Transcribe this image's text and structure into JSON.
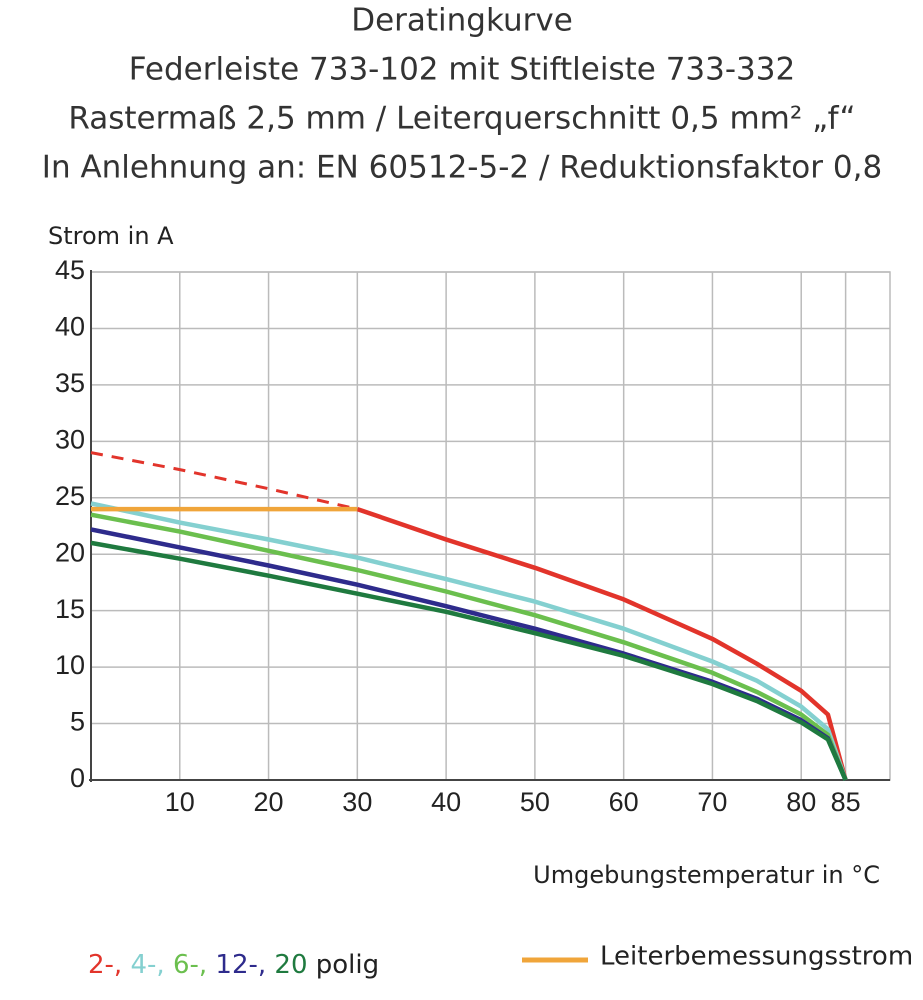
{
  "chart_data": {
    "type": "line",
    "title": [
      "Deratingkurve",
      "Federleiste 733-102 mit Stiftleiste 733-332",
      "Rastermaß 2,5 mm / Leiterquerschnitt 0,5 mm² „f“",
      "In Anlehnung an: EN 60512-5-2 / Reduktionsfaktor 0,8"
    ],
    "y_label": "Strom in A",
    "x_label": "Umgebungstemperatur in °C",
    "x": [
      0,
      10,
      20,
      30,
      40,
      50,
      60,
      70,
      75,
      80,
      83,
      85
    ],
    "xlim": [
      0,
      90
    ],
    "xticks": [
      10,
      20,
      30,
      40,
      50,
      60,
      70,
      80,
      85
    ],
    "ylim": [
      0,
      45
    ],
    "yticks": [
      0,
      5,
      10,
      15,
      20,
      25,
      30,
      35,
      40,
      45
    ],
    "grid": true,
    "legend_suffix": "polig",
    "series": [
      {
        "name": "2-,",
        "color": "#e2342b",
        "legend": "left",
        "values": [
          null,
          null,
          null,
          24,
          21.3,
          18.8,
          16,
          12.5,
          10.3,
          7.9,
          5.8,
          0
        ],
        "dashed_values": [
          29,
          27.5,
          25.8,
          24,
          null,
          null,
          null,
          null,
          null,
          null,
          null,
          null
        ]
      },
      {
        "name": "4-,",
        "color": "#84d0d0",
        "legend": "left",
        "values": [
          24.5,
          22.8,
          21.3,
          19.7,
          17.8,
          15.8,
          13.4,
          10.5,
          8.8,
          6.5,
          4.5,
          0
        ]
      },
      {
        "name": "6-,",
        "color": "#6bbf4e",
        "legend": "left",
        "values": [
          23.5,
          22,
          20.3,
          18.6,
          16.7,
          14.6,
          12.2,
          9.5,
          7.8,
          5.8,
          4,
          0
        ]
      },
      {
        "name": "12-,",
        "color": "#2e2b8c",
        "legend": "left",
        "values": [
          22.2,
          20.6,
          19,
          17.3,
          15.4,
          13.4,
          11.2,
          8.7,
          7.2,
          5.3,
          3.7,
          0
        ]
      },
      {
        "name": "20",
        "color": "#1f7a3f",
        "legend": "left",
        "values": [
          21,
          19.6,
          18.1,
          16.5,
          14.9,
          13,
          11,
          8.5,
          7,
          5.1,
          3.6,
          0
        ]
      },
      {
        "name": "Leiterbemessungsstrom",
        "color": "#f0a53a",
        "legend": "right",
        "values": [
          24,
          24,
          24,
          24,
          null,
          null,
          null,
          null,
          null,
          null,
          null,
          null
        ]
      }
    ]
  }
}
